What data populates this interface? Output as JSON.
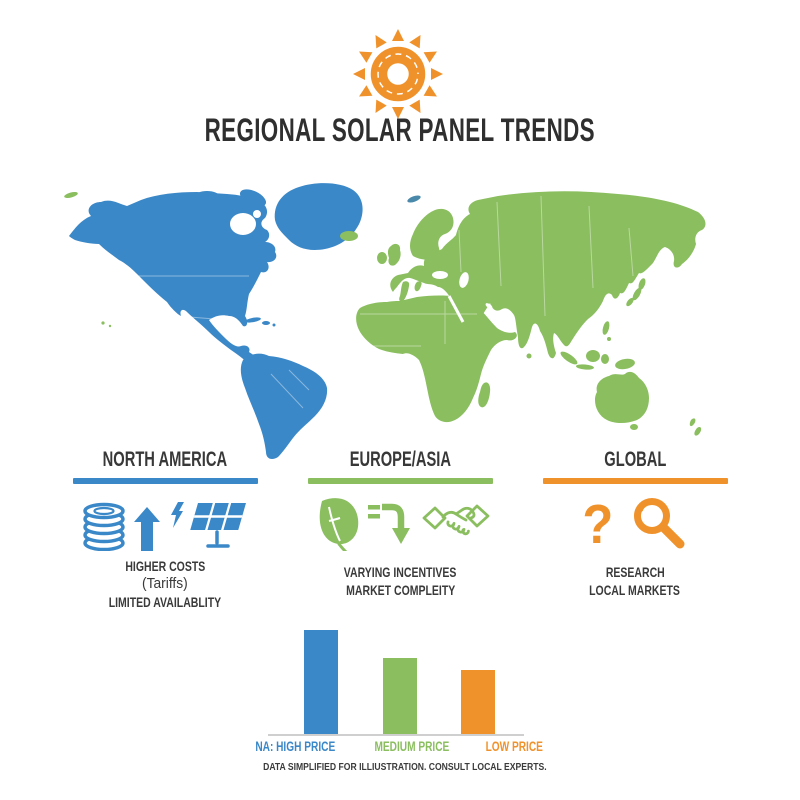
{
  "colors": {
    "blue": "#3B88C8",
    "green": "#8ABE5F",
    "orange": "#F0922B",
    "ink": "#333333",
    "line": "#CFCFCF"
  },
  "header": {
    "logo": "sun-gear-icon",
    "title": "REGIONAL SOLAR PANEL TRENDS"
  },
  "map": {
    "name": "world-map",
    "regions": [
      {
        "name": "Americas",
        "color": "#3B88C8"
      },
      {
        "name": "Europe / Africa / Asia / Oceania",
        "color": "#8ABE5F"
      }
    ]
  },
  "columns": [
    {
      "id": "north-america",
      "title": "NORTH AMERICA",
      "accent": "#3B88C8",
      "icons": [
        "coin-stack-icon",
        "arrow-up-icon",
        "lightning-icon",
        "solar-panel-icon"
      ],
      "lines": [
        "HIGHER COSTS",
        "(Tariffs)",
        "LIMITED AVAILABLITY"
      ]
    },
    {
      "id": "europe-asia",
      "title": "EUROPE/ASIA",
      "accent": "#8ABE5F",
      "icons": [
        "leaf-icon",
        "arrow-down-icon",
        "handshake-icon"
      ],
      "lines": [
        "VARYING INCENTIVES",
        "MARKET COMPLEITY"
      ]
    },
    {
      "id": "global",
      "title": "GLOBAL",
      "accent": "#F0922B",
      "icons": [
        "question-mark-icon",
        "magnifier-icon"
      ],
      "question_glyph": "?",
      "lines": [
        "RESEARCH",
        "LOCAL MARKETS"
      ]
    }
  ],
  "chart_data": {
    "type": "bar",
    "categories": [
      "NA: HIGH PRICE",
      "MEDIUM PRICE",
      "LOW PRICE"
    ],
    "values": [
      100,
      73,
      62
    ],
    "unit": "relative panel price (no numeric axis shown)",
    "colors": [
      "#3B88C8",
      "#8ABE5F",
      "#F0922B"
    ],
    "title": "",
    "xlabel": "",
    "ylabel": "",
    "grid": false,
    "legend_position": "below-bars"
  },
  "footer": {
    "disclaimer": "DATA SIMPLIFIED FOR ILLIUSTRATION. CONSULT LOCAL EXPERTS."
  }
}
